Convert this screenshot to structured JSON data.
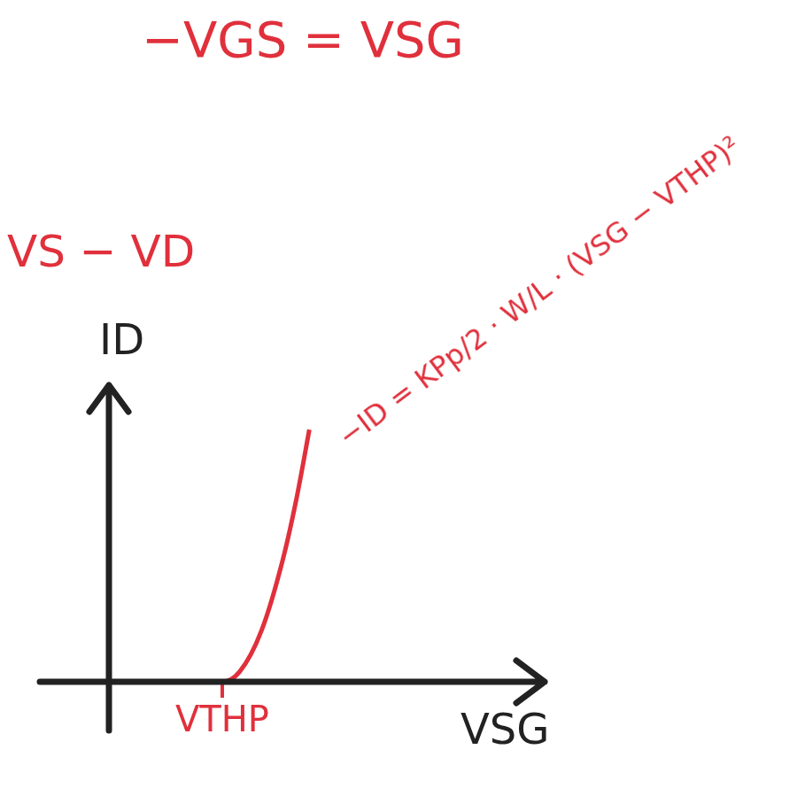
{
  "chart_data": {
    "type": "line",
    "title": "−VGS = VSG",
    "annotations": [
      "VS − VD",
      "−ID = KPp/2 · W/L · (VSG − VTHP)²"
    ],
    "x_label": "VSG",
    "y_label": "ID",
    "x": [
      0,
      0.5,
      1,
      1.5,
      2,
      2.6,
      3,
      3.5,
      4,
      4.3,
      4.6
    ],
    "values": [
      0,
      0,
      0,
      0,
      0,
      0,
      0.34,
      1.72,
      4.17,
      6.14,
      8.5
    ],
    "color": "#e0303c",
    "xlim": [
      0,
      10
    ],
    "ylim": [
      0,
      10
    ],
    "xticks": [
      {
        "value": 2.6,
        "label": "VTHP"
      }
    ],
    "grid": false,
    "tick_labels": "x"
  }
}
